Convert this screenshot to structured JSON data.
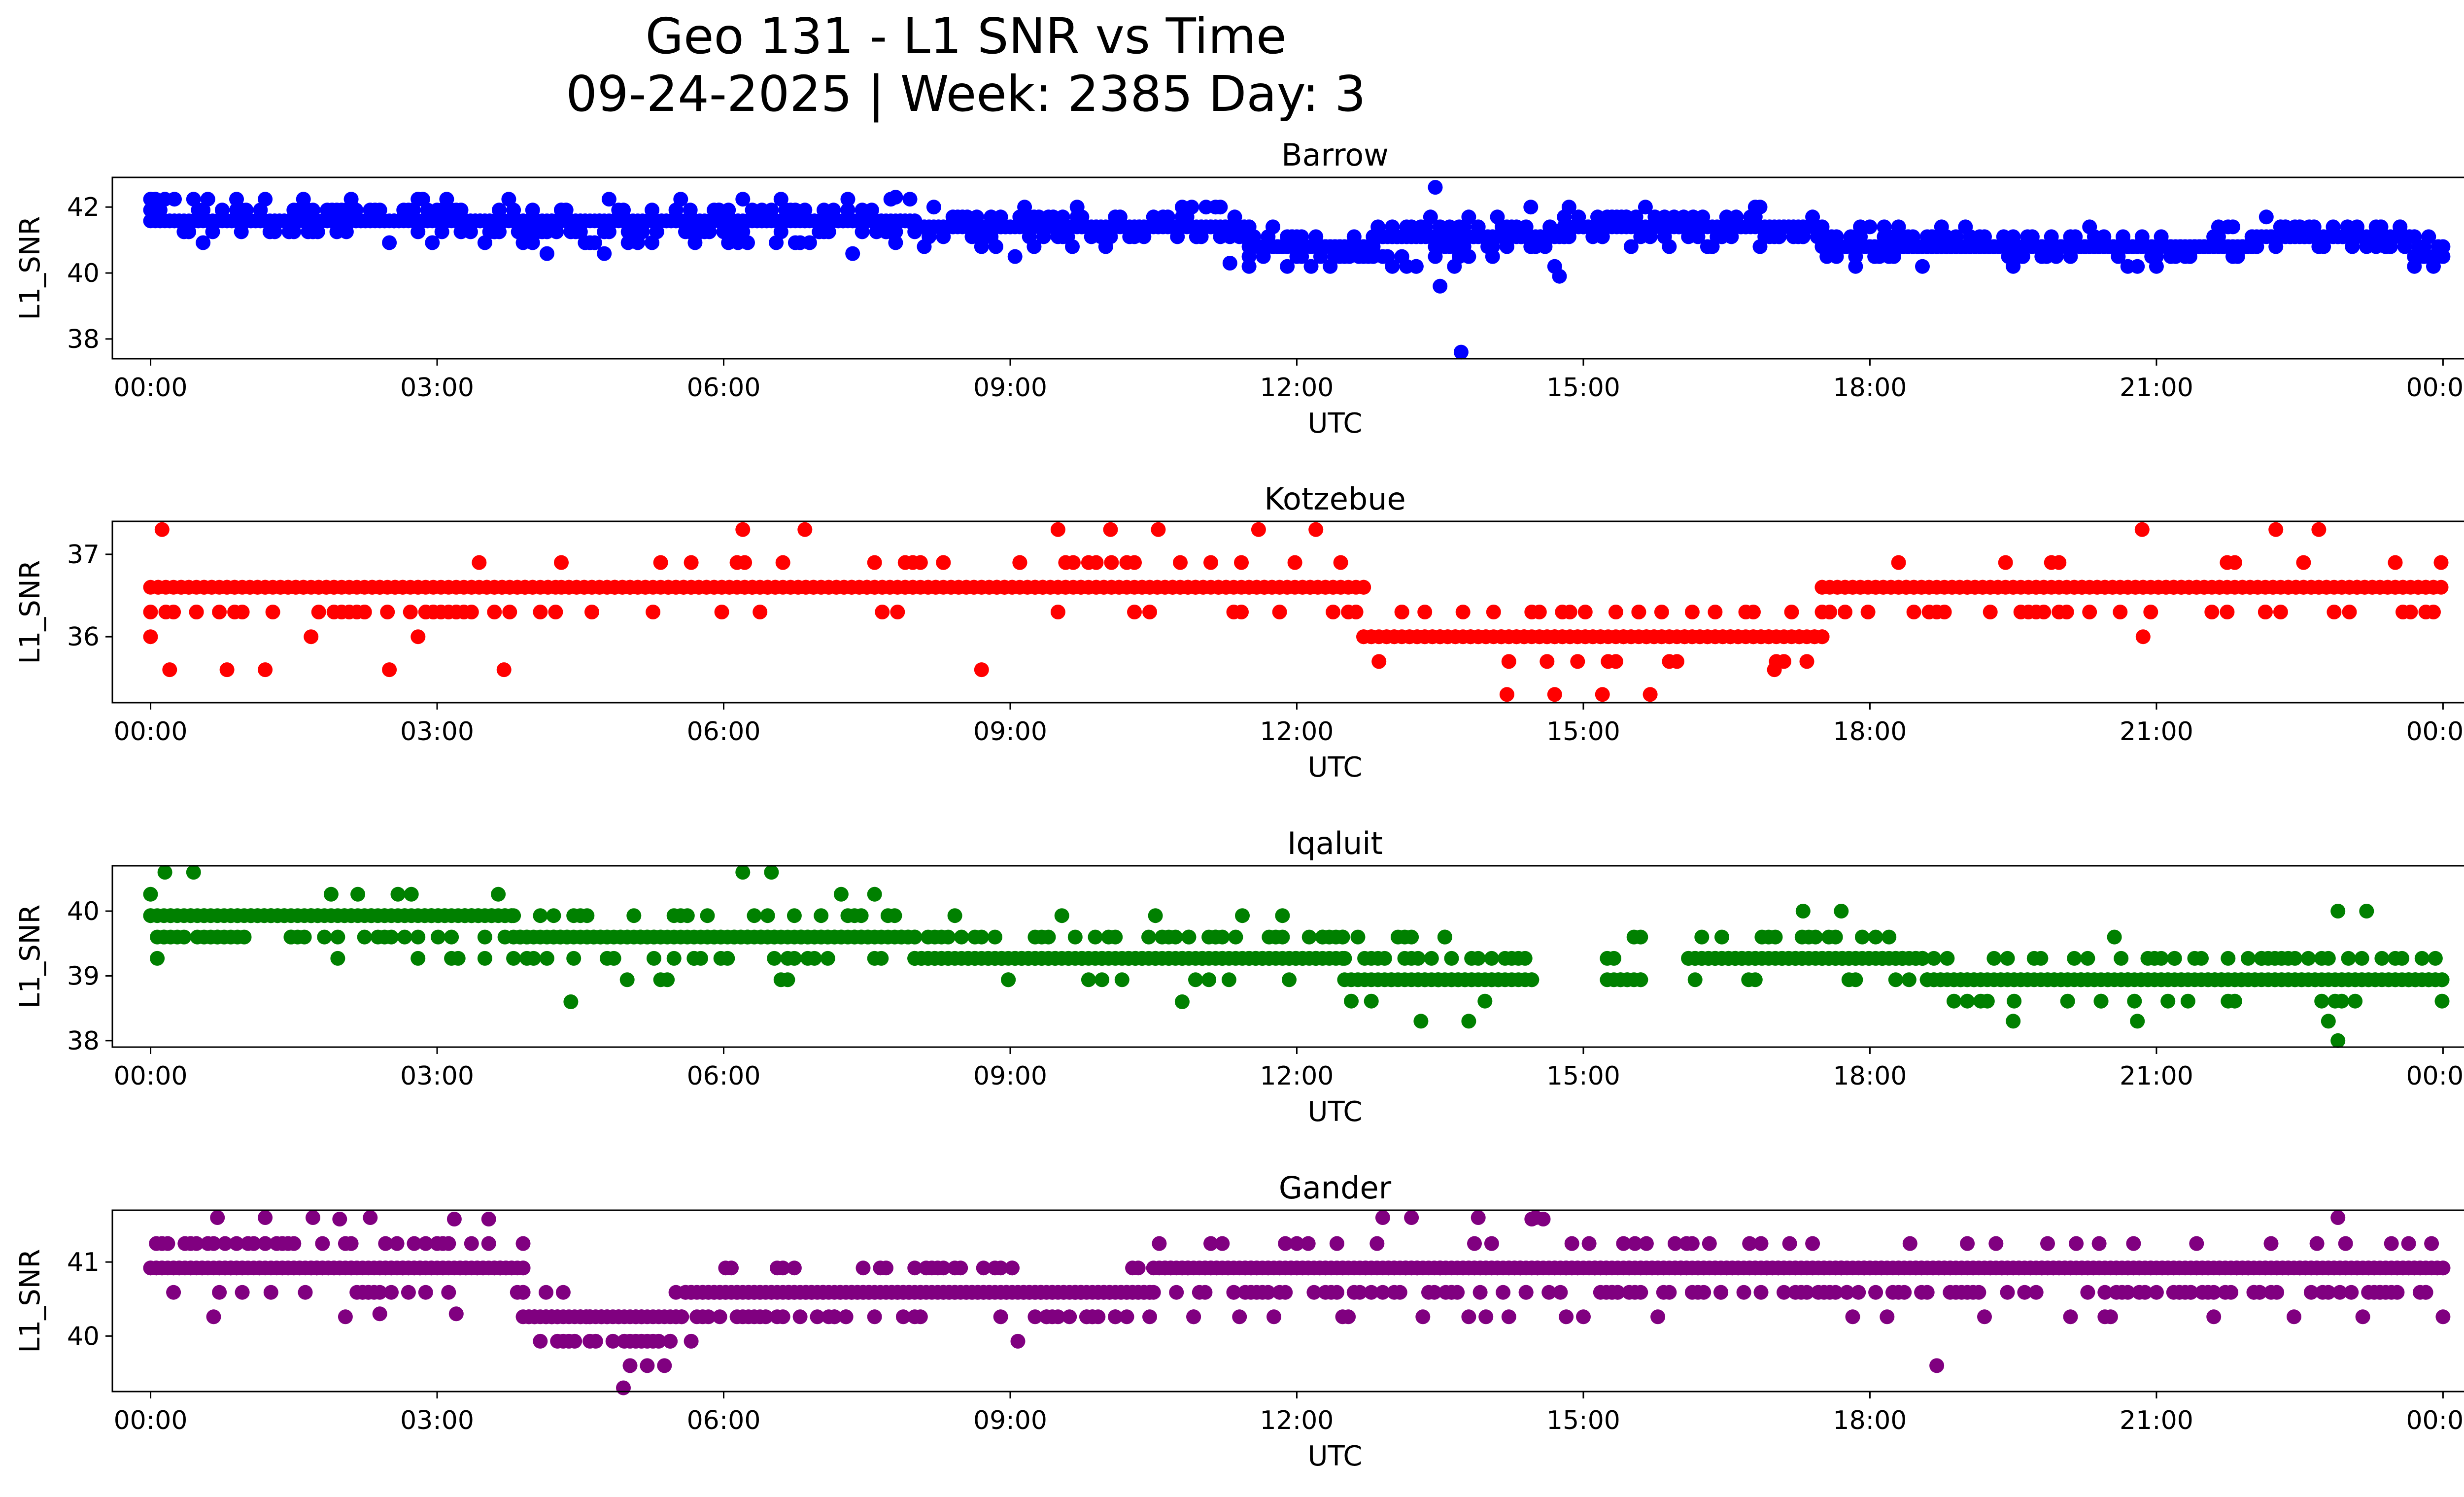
{
  "chart_data": {
    "type": "scatter",
    "title_line1": "Geo 131 - L1 SNR vs Time",
    "title_line2": "09-24-2025 | Week: 2385 Day: 3",
    "x_domain_hours": [
      -0.4,
      25.2
    ],
    "x_tick_hours": [
      0,
      3,
      6,
      9,
      12,
      15,
      18,
      21,
      24
    ],
    "x_tick_labels": [
      "00:00",
      "03:00",
      "06:00",
      "09:00",
      "12:00",
      "15:00",
      "18:00",
      "21:00",
      "00:00"
    ],
    "xlabel": "UTC",
    "ylabel": "L1_SNR",
    "subplots": [
      {
        "name": "Barrow",
        "color": "#0000ff",
        "ylim": [
          37.4,
          42.9
        ],
        "yticks": [
          38,
          40,
          42
        ],
        "ytick_labels": [
          "38",
          "40",
          "42"
        ],
        "hour_steps": 0.05,
        "segments": [
          [
            0,
            4.0,
            41.6,
            0.33,
            0.5
          ],
          [
            4.0,
            8.0,
            41.5,
            0.33,
            0.55
          ],
          [
            8.0,
            11.5,
            41.4,
            0.3,
            0.45
          ],
          [
            11.5,
            12.8,
            40.7,
            0.3,
            0.4
          ],
          [
            12.8,
            14.8,
            41.0,
            0.3,
            0.75
          ],
          [
            14.8,
            17.5,
            41.3,
            0.3,
            0.45
          ],
          [
            17.5,
            19.5,
            40.9,
            0.3,
            0.4
          ],
          [
            19.5,
            22.0,
            40.8,
            0.3,
            0.4
          ],
          [
            22.0,
            23.7,
            41.1,
            0.3,
            0.4
          ],
          [
            23.7,
            24.0,
            40.6,
            0.3,
            0.35
          ]
        ],
        "outliers": [
          [
            13.72,
            37.6
          ],
          [
            13.5,
            39.6
          ],
          [
            13.45,
            42.6
          ],
          [
            7.8,
            42.3
          ],
          [
            11.3,
            40.3
          ]
        ]
      },
      {
        "name": "Kotzebue",
        "color": "#ff0000",
        "ylim": [
          35.2,
          37.4
        ],
        "yticks": [
          36,
          37
        ],
        "ytick_labels": [
          "36",
          "37"
        ],
        "hour_steps": 0.08,
        "segments": [
          [
            0,
            4.3,
            36.45,
            0.3,
            0.25
          ],
          [
            4.3,
            12.7,
            36.6,
            0.3,
            0.2
          ],
          [
            12.7,
            17.5,
            36.05,
            0.3,
            0.22
          ],
          [
            17.5,
            24.0,
            36.5,
            0.3,
            0.25
          ]
        ],
        "outliers": [
          [
            0.12,
            37.3
          ],
          [
            6.2,
            37.3
          ],
          [
            6.85,
            37.3
          ],
          [
            9.5,
            37.3
          ],
          [
            10.05,
            37.3
          ],
          [
            10.55,
            37.3
          ],
          [
            11.6,
            37.3
          ],
          [
            12.2,
            37.3
          ],
          [
            20.85,
            37.3
          ],
          [
            22.25,
            37.3
          ],
          [
            22.7,
            37.3
          ],
          [
            14.2,
            35.3
          ],
          [
            14.7,
            35.3
          ],
          [
            15.2,
            35.3
          ],
          [
            15.7,
            35.3
          ],
          [
            0.2,
            35.6
          ],
          [
            0.8,
            35.6
          ],
          [
            1.2,
            35.6
          ],
          [
            2.5,
            35.6
          ],
          [
            3.7,
            35.6
          ],
          [
            8.7,
            35.6
          ],
          [
            17.0,
            35.6
          ]
        ]
      },
      {
        "name": "Iqaluit",
        "color": "#008000",
        "ylim": [
          37.9,
          40.7
        ],
        "yticks": [
          38,
          39,
          40
        ],
        "ytick_labels": [
          "38",
          "39",
          "40"
        ],
        "hour_steps": 0.07,
        "segments": [
          [
            0,
            3.8,
            39.8,
            0.33,
            0.35
          ],
          [
            3.8,
            8.0,
            39.55,
            0.33,
            0.4
          ],
          [
            8.0,
            12.5,
            39.4,
            0.33,
            0.35
          ],
          [
            12.5,
            14.5,
            39.1,
            0.33,
            0.4
          ],
          [
            15.25,
            15.65,
            39.1,
            0.33,
            0.35
          ],
          [
            16.1,
            18.6,
            39.3,
            0.33,
            0.3
          ],
          [
            18.6,
            24.0,
            39.0,
            0.33,
            0.35
          ]
        ],
        "outliers": [
          [
            0.15,
            40.6
          ],
          [
            0.45,
            40.6
          ],
          [
            6.2,
            40.6
          ],
          [
            6.5,
            40.6
          ],
          [
            22.9,
            38.0
          ],
          [
            13.3,
            38.3
          ],
          [
            13.8,
            38.3
          ],
          [
            19.5,
            38.3
          ],
          [
            20.8,
            38.3
          ],
          [
            22.8,
            38.3
          ],
          [
            4.4,
            38.6
          ],
          [
            10.8,
            38.6
          ],
          [
            17.3,
            40.0
          ],
          [
            17.7,
            40.0
          ],
          [
            22.9,
            40.0
          ],
          [
            23.2,
            40.0
          ]
        ]
      },
      {
        "name": "Gander",
        "color": "#800080",
        "ylim": [
          39.25,
          41.7
        ],
        "yticks": [
          40,
          41
        ],
        "ytick_labels": [
          "40",
          "41"
        ],
        "hour_steps": 0.06,
        "segments": [
          [
            0,
            3.9,
            41.0,
            0.33,
            0.35
          ],
          [
            3.9,
            4.6,
            40.3,
            0.33,
            0.3
          ],
          [
            4.6,
            5.6,
            40.1,
            0.33,
            0.35
          ],
          [
            5.6,
            10.5,
            40.5,
            0.33,
            0.35
          ],
          [
            10.5,
            24.0,
            40.8,
            0.33,
            0.4
          ]
        ],
        "outliers": [
          [
            4.95,
            39.3
          ],
          [
            18.7,
            39.6
          ],
          [
            0.7,
            41.6
          ],
          [
            1.2,
            41.6
          ],
          [
            1.7,
            41.6
          ],
          [
            2.3,
            41.6
          ],
          [
            12.9,
            41.6
          ],
          [
            13.2,
            41.6
          ],
          [
            13.9,
            41.6
          ],
          [
            14.5,
            41.6
          ],
          [
            22.9,
            41.6
          ],
          [
            2.4,
            40.3
          ],
          [
            3.2,
            40.3
          ]
        ]
      }
    ]
  }
}
